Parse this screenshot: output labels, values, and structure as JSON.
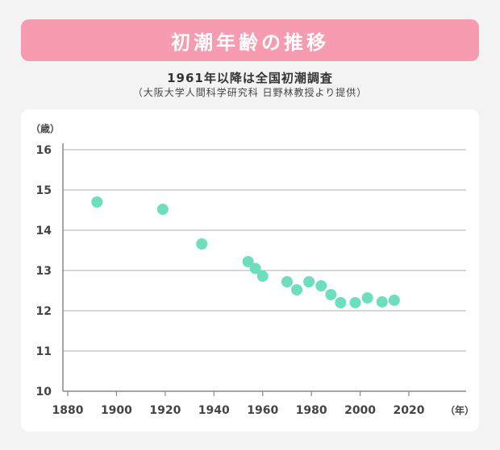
{
  "header": {
    "title": "初潮年齢の推移",
    "subtitle": "1961年以降は全国初潮調査",
    "source": "（大阪大学人間科学研究科 日野林教授より提供）"
  },
  "colors": {
    "banner": "#f79bb0",
    "point": "#6ddfbf",
    "grid": "#bdbdbd"
  },
  "chart_data": {
    "type": "scatter",
    "title": "",
    "xlabel": "（年）",
    "ylabel": "（歳）",
    "xlim": [
      1880,
      2020
    ],
    "ylim": [
      10,
      16
    ],
    "xticks": [
      "1880",
      "1900",
      "1920",
      "1940",
      "1960",
      "1980",
      "2000",
      "2020"
    ],
    "yticks": [
      "10",
      "11",
      "12",
      "13",
      "14",
      "15",
      "16"
    ],
    "grid": "horizontal",
    "series": [
      {
        "points": [
          {
            "x": 1892,
            "y": 14.7
          },
          {
            "x": 1919,
            "y": 14.52
          },
          {
            "x": 1935,
            "y": 13.66
          },
          {
            "x": 1954,
            "y": 13.22
          },
          {
            "x": 1957,
            "y": 13.05
          },
          {
            "x": 1960,
            "y": 12.86
          },
          {
            "x": 1970,
            "y": 12.72
          },
          {
            "x": 1974,
            "y": 12.52
          },
          {
            "x": 1979,
            "y": 12.72
          },
          {
            "x": 1984,
            "y": 12.62
          },
          {
            "x": 1988,
            "y": 12.4
          },
          {
            "x": 1992,
            "y": 12.2
          },
          {
            "x": 1998,
            "y": 12.2
          },
          {
            "x": 2003,
            "y": 12.32
          },
          {
            "x": 2009,
            "y": 12.22
          },
          {
            "x": 2014,
            "y": 12.26
          }
        ]
      }
    ]
  }
}
